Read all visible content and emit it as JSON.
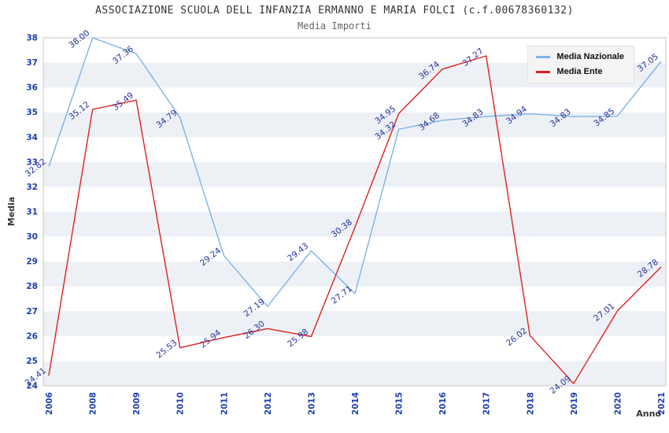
{
  "title": "ASSOCIAZIONE SCUOLA DELL INFANZIA ERMANNO E MARIA FOLCI (c.f.00678360132)",
  "subtitle": "Media Importi",
  "chart_data": {
    "type": "line",
    "categories": [
      "2006",
      "2008",
      "2009",
      "2010",
      "2011",
      "2012",
      "2013",
      "2014",
      "2015",
      "2016",
      "2017",
      "2018",
      "2019",
      "2020",
      "2021"
    ],
    "series": [
      {
        "name": "Media Nazionale",
        "color": "#7fb2e5",
        "values": [
          32.82,
          38.0,
          37.36,
          34.79,
          29.24,
          27.19,
          29.43,
          27.71,
          34.32,
          34.68,
          34.83,
          34.94,
          34.83,
          34.85,
          37.05
        ]
      },
      {
        "name": "Media Ente",
        "color": "#e01f1f",
        "values": [
          24.41,
          35.12,
          35.49,
          25.53,
          25.94,
          26.3,
          25.98,
          30.38,
          34.95,
          36.74,
          37.27,
          26.02,
          24.09,
          27.01,
          28.78
        ]
      }
    ],
    "xlabel": "Anno",
    "ylabel": "Media",
    "ylim": [
      24,
      38
    ],
    "yticks": [
      24,
      25,
      26,
      27,
      28,
      29,
      30,
      31,
      32,
      33,
      34,
      35,
      36,
      37,
      38
    ],
    "grid": "striped-bands",
    "legend_position": "top-right",
    "band_colors": [
      "#ffffff",
      "#edf1f6"
    ],
    "plot_border_color": "#c8c8c8",
    "tick_label_color": "#1d3db0",
    "point_label_color": "#26319e"
  }
}
